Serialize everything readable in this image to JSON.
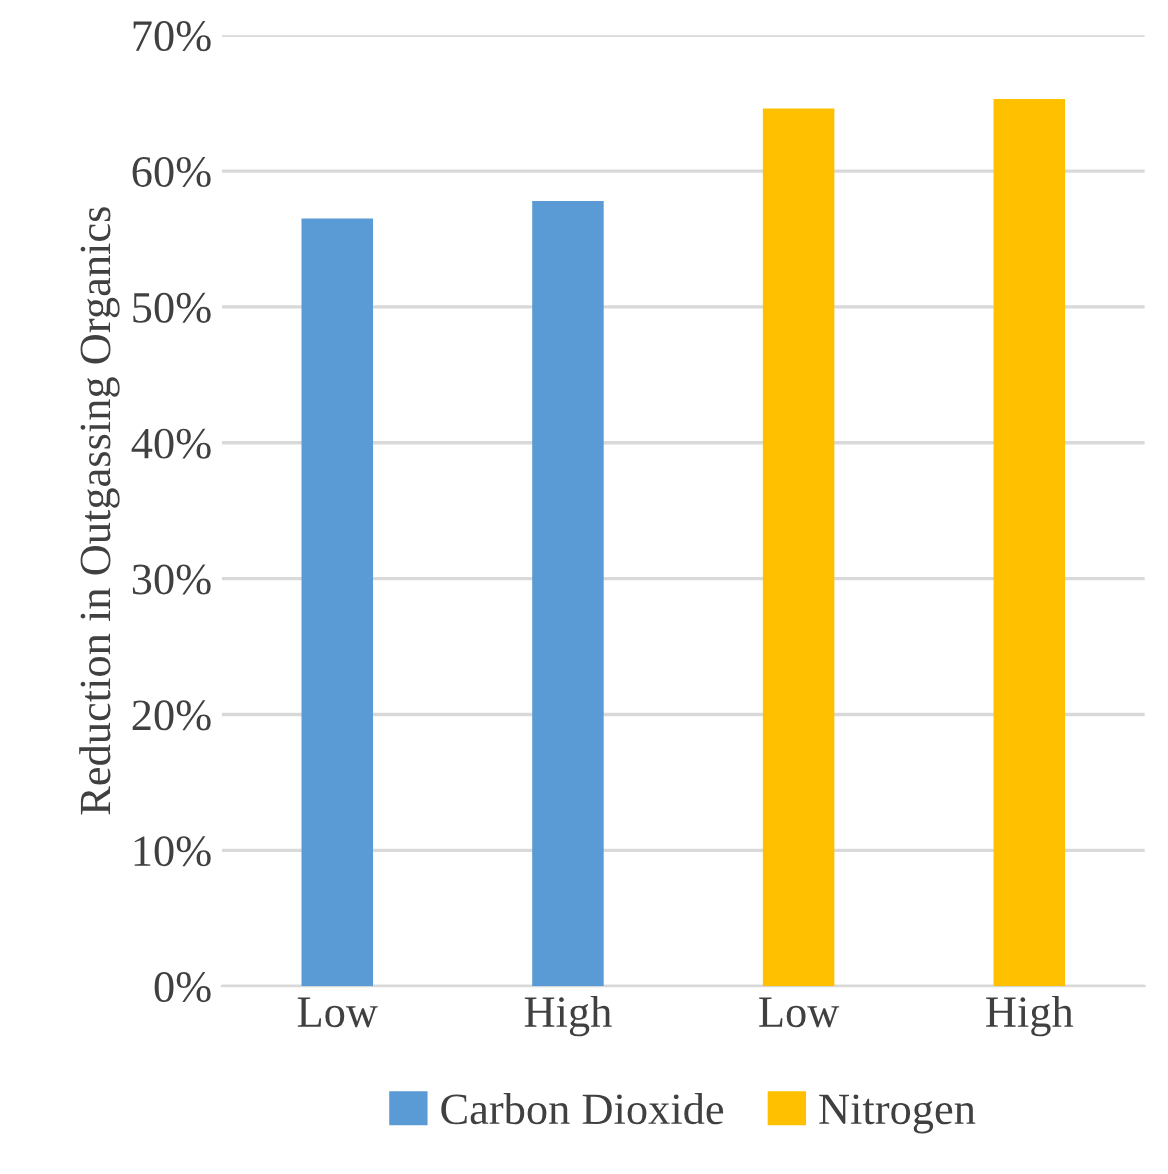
{
  "chart_data": {
    "type": "bar",
    "ylabel": "Reduction in Outgassing Organics",
    "categories": [
      "Low",
      "High",
      "Low",
      "High"
    ],
    "series": [
      {
        "name": "Carbon Dioxide",
        "color": "#5b9bd5",
        "values": [
          56.5,
          57.8,
          null,
          null
        ]
      },
      {
        "name": "Nitrogen",
        "color": "#ffc000",
        "values": [
          null,
          null,
          64.6,
          65.3
        ]
      }
    ],
    "ylim": [
      0,
      70
    ],
    "yticks": [
      {
        "value": 0,
        "label": "0%"
      },
      {
        "value": 10,
        "label": "10%"
      },
      {
        "value": 20,
        "label": "20%"
      },
      {
        "value": 30,
        "label": "30%"
      },
      {
        "value": 40,
        "label": "40%"
      },
      {
        "value": 50,
        "label": "50%"
      },
      {
        "value": 60,
        "label": "60%"
      },
      {
        "value": 70,
        "label": "70%"
      }
    ],
    "grid": "y",
    "legend": "bottom"
  }
}
